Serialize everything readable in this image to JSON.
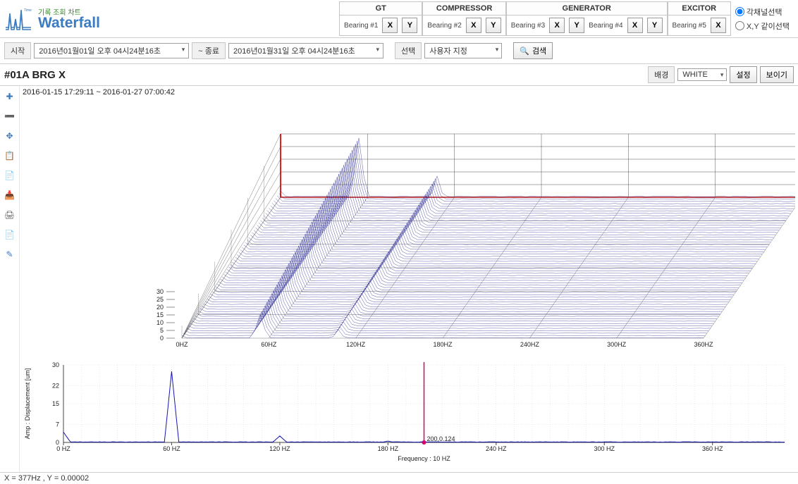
{
  "header": {
    "subtitle": "기록 조회 차트",
    "title": "Waterfall",
    "tabs": [
      {
        "name": "GT",
        "bearings": [
          {
            "label": "Bearing #1",
            "x": "X",
            "y": "Y"
          }
        ]
      },
      {
        "name": "COMPRESSOR",
        "bearings": [
          {
            "label": "Bearing #2",
            "x": "X",
            "y": "Y"
          }
        ]
      },
      {
        "name": "GENERATOR",
        "bearings": [
          {
            "label": "Bearing #3",
            "x": "X",
            "y": "Y"
          },
          {
            "label": "Bearing #4",
            "x": "X",
            "y": "Y"
          }
        ]
      },
      {
        "name": "EXCITOR",
        "bearings": [
          {
            "label": "Bearing #5",
            "x": "X"
          }
        ]
      }
    ],
    "radios": {
      "opt1": "각채널선택",
      "opt2": "X,Y 같이선택"
    }
  },
  "toolbar": {
    "start_label": "시작",
    "start_value": "2016년01월01일 오후 04시24분16초",
    "end_label": "~ 종료",
    "end_value": "2016년01월31일 오후 04시24분16초",
    "select_label": "선택",
    "select_value": "사용자 지정",
    "search_label": "검색"
  },
  "chart": {
    "title": "#01A BRG X",
    "bg_label": "배경",
    "bg_value": "WHITE",
    "settings_btn": "설정",
    "show_btn": "보이기",
    "timestamp": "2016-01-15 17:29:11 ~ 2016-01-27 07:00:42"
  },
  "waterfall3d": {
    "z_ticks": [
      0,
      5,
      10,
      15,
      20,
      25,
      30
    ],
    "x_ticks": [
      "0HZ",
      "60HZ",
      "120HZ",
      "180HZ",
      "240HZ",
      "300HZ",
      "360HZ"
    ],
    "peak1_hz": 60,
    "peak1_amp": 28,
    "peak2_hz": 120,
    "peak2_amp": 10,
    "num_traces": 60,
    "line_color": "#1a1a8a",
    "outline_color": "#e00000",
    "grid_color": "#555555",
    "background": "#ffffff"
  },
  "spectrum2d": {
    "x_ticks": [
      "0 HZ",
      "60 HZ",
      "120 HZ",
      "180 HZ",
      "240 HZ",
      "300 HZ",
      "360 HZ"
    ],
    "y_ticks": [
      0,
      7,
      15,
      22,
      30
    ],
    "y_max": 30,
    "x_max": 400,
    "x_label": "Frequency : 10 HZ",
    "y_label": "Amp : Displacement [um]",
    "cursor_x": 200,
    "cursor_label": "200,0.124",
    "peaks": [
      {
        "hz": 0,
        "amp": 4
      },
      {
        "hz": 60,
        "amp": 27.5
      },
      {
        "hz": 120,
        "amp": 2.5
      },
      {
        "hz": 180,
        "amp": 0.5
      }
    ],
    "line_color": "#1414b0",
    "grid_color": "#d8d8d8",
    "cursor_color": "#d40070"
  },
  "sidebar_icons": [
    "✚",
    "➖",
    "✥",
    "📋",
    "📄",
    "📥",
    "🖨",
    "📄",
    "✎"
  ],
  "status": {
    "text": "X = 377Hz , Y = 0.00002"
  }
}
